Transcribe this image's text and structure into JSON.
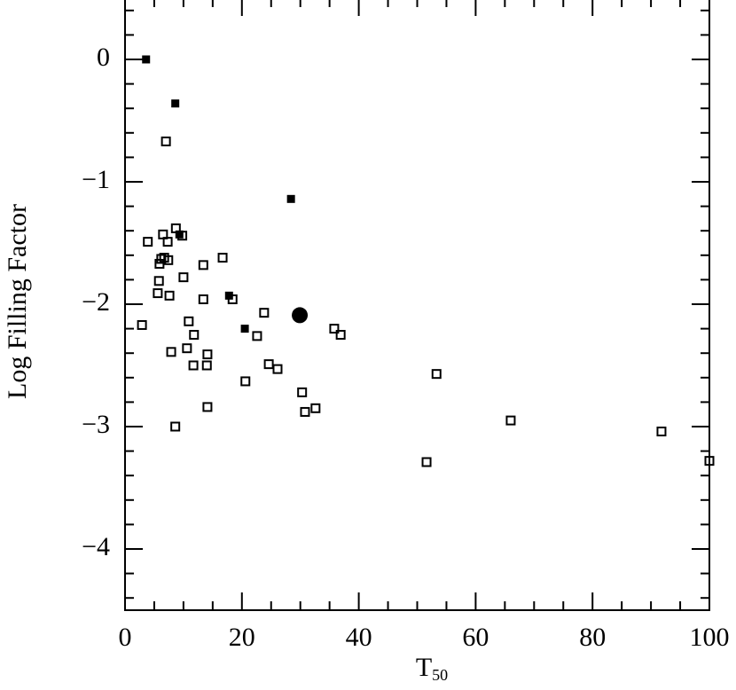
{
  "chart_data": {
    "type": "scatter",
    "ylabel": "Log Filling Factor",
    "xlabel": {
      "text": "T",
      "subscript": "50"
    },
    "xlim": [
      0,
      100
    ],
    "ylim": [
      -4.5,
      0.5
    ],
    "xticks": [
      0,
      20,
      40,
      60,
      80,
      100
    ],
    "yticks": [
      0,
      {
        "value": -1,
        "label": "−1"
      },
      {
        "value": -2,
        "label": "−2"
      },
      {
        "value": -3,
        "label": "−3"
      },
      {
        "value": -4,
        "label": "−4"
      }
    ],
    "xticks_minor": [
      5,
      10,
      15,
      25,
      30,
      35,
      45,
      50,
      55,
      65,
      70,
      75,
      85,
      90,
      95
    ],
    "yticks_minor": [
      0.4,
      0.2,
      -0.2,
      -0.4,
      -0.6,
      -0.8,
      -1.2,
      -1.4,
      -1.6,
      -1.8,
      -2.2,
      -2.4,
      -2.6,
      -2.8,
      -3.2,
      -3.4,
      -3.6,
      -3.8,
      -4.2,
      -4.4
    ],
    "series": [
      {
        "marker": "filled-square",
        "color": "#000000",
        "x": [
          3.6,
          8.6,
          28.4,
          9.3,
          17.8,
          20.5
        ],
        "values": [
          0.0,
          -0.36,
          -1.14,
          -1.43,
          -1.93,
          -2.2
        ]
      },
      {
        "marker": "open-square",
        "color": "#000000",
        "x": [
          7.0,
          3.9,
          6.5,
          7.3,
          8.7,
          9.8,
          5.9,
          6.7,
          7.4,
          6.2,
          16.7,
          13.4,
          10.0,
          5.8,
          5.6,
          7.6,
          13.4,
          18.4,
          2.9,
          10.9,
          11.8,
          23.8,
          22.6,
          35.8,
          36.9,
          7.9,
          10.6,
          14.1,
          11.7,
          14.0,
          24.6,
          26.1,
          20.6,
          53.3,
          30.3,
          14.1,
          32.6,
          30.8,
          66.0,
          8.6,
          91.8,
          51.6,
          100.0
        ],
        "values": [
          -0.67,
          -1.49,
          -1.43,
          -1.49,
          -1.38,
          -1.44,
          -1.67,
          -1.62,
          -1.64,
          -1.63,
          -1.62,
          -1.68,
          -1.78,
          -1.81,
          -1.91,
          -1.93,
          -1.96,
          -1.96,
          -2.17,
          -2.14,
          -2.25,
          -2.07,
          -2.26,
          -2.2,
          -2.25,
          -2.39,
          -2.36,
          -2.41,
          -2.5,
          -2.5,
          -2.49,
          -2.53,
          -2.63,
          -2.57,
          -2.72,
          -2.84,
          -2.85,
          -2.88,
          -2.95,
          -3.0,
          -3.04,
          -3.29,
          -3.28
        ]
      },
      {
        "marker": "filled-circle",
        "color": "#000000",
        "x": [
          29.9
        ],
        "values": [
          -2.09
        ]
      }
    ]
  }
}
